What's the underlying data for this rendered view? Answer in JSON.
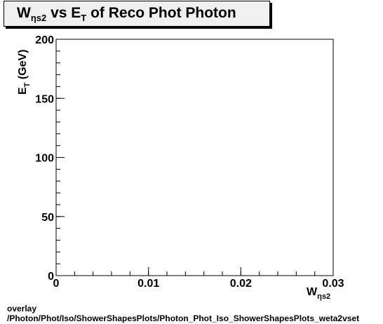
{
  "title": {
    "base": "W",
    "sub1": "ηs2",
    "mid": " vs E",
    "sub2": "T",
    "rest": " of Reco Phot Photon"
  },
  "footer": {
    "line1": "overlay",
    "line2": "/Photon/Phot/Iso/ShowerShapesPlots/Photon_Phot_Iso_ShowerShapesPlots_weta2vset"
  },
  "chart_data": {
    "type": "scatter",
    "title": "W_ηs2 vs E_T of Reco Phot Photon",
    "xlabel": "W_ηs2",
    "ylabel": "E_T (GeV)",
    "xlim": [
      0,
      0.03
    ],
    "ylim": [
      0,
      200
    ],
    "x_ticks": [
      {
        "value": 0,
        "label": "0"
      },
      {
        "value": 0.01,
        "label": "0.01"
      },
      {
        "value": 0.02,
        "label": "0.02"
      },
      {
        "value": 0.03,
        "label": "0.03"
      }
    ],
    "y_ticks": [
      {
        "value": 0,
        "label": "0"
      },
      {
        "value": 50,
        "label": "50"
      },
      {
        "value": 100,
        "label": "100"
      },
      {
        "value": 150,
        "label": "150"
      },
      {
        "value": 200,
        "label": "200"
      }
    ],
    "x_minor_step": 0.002,
    "y_minor_step": 10,
    "grid": false,
    "points": []
  }
}
